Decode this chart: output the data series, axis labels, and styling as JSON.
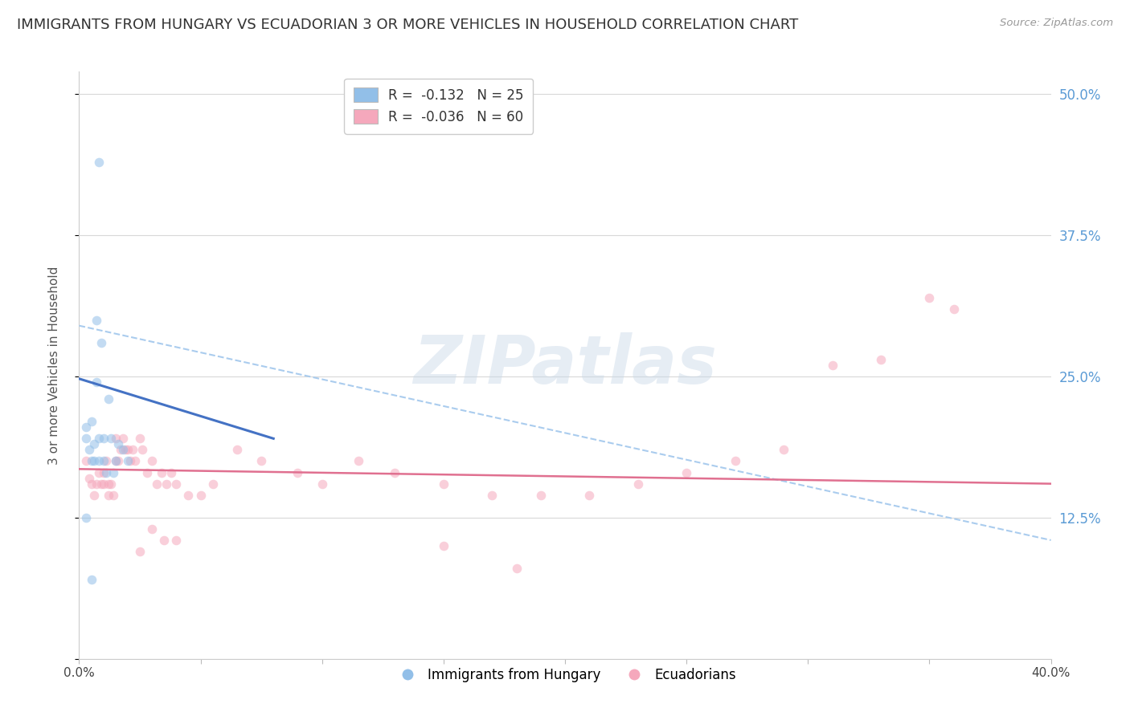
{
  "title": "IMMIGRANTS FROM HUNGARY VS ECUADORIAN 3 OR MORE VEHICLES IN HOUSEHOLD CORRELATION CHART",
  "source": "Source: ZipAtlas.com",
  "ylabel_left": "3 or more Vehicles in Household",
  "xlim": [
    0.0,
    0.4
  ],
  "ylim": [
    0.0,
    0.52
  ],
  "yticks_right": [
    0.0,
    0.125,
    0.25,
    0.375,
    0.5
  ],
  "ytick_right_labels": [
    "",
    "12.5%",
    "25.0%",
    "37.5%",
    "50.0%"
  ],
  "xticks": [
    0.0,
    0.05,
    0.1,
    0.15,
    0.2,
    0.25,
    0.3,
    0.35,
    0.4
  ],
  "xtick_labels": [
    "0.0%",
    "",
    "",
    "",
    "",
    "",
    "",
    "",
    "40.0%"
  ],
  "watermark": "ZIPatlas",
  "legend_r_blue": "R =  -0.132   N = 25",
  "legend_r_pink": "R =  -0.036   N = 60",
  "legend_label_blue": "Immigrants from Hungary",
  "legend_label_pink": "Ecuadorians",
  "blue_scatter_x": [
    0.003,
    0.003,
    0.004,
    0.005,
    0.005,
    0.006,
    0.006,
    0.007,
    0.007,
    0.008,
    0.008,
    0.009,
    0.01,
    0.01,
    0.011,
    0.012,
    0.013,
    0.014,
    0.015,
    0.016,
    0.018,
    0.02,
    0.003,
    0.005,
    0.008
  ],
  "blue_scatter_y": [
    0.205,
    0.195,
    0.185,
    0.175,
    0.21,
    0.19,
    0.175,
    0.3,
    0.245,
    0.195,
    0.175,
    0.28,
    0.175,
    0.195,
    0.165,
    0.23,
    0.195,
    0.165,
    0.175,
    0.19,
    0.185,
    0.175,
    0.125,
    0.07,
    0.44
  ],
  "pink_scatter_x": [
    0.003,
    0.004,
    0.005,
    0.006,
    0.007,
    0.008,
    0.009,
    0.01,
    0.01,
    0.011,
    0.012,
    0.012,
    0.013,
    0.014,
    0.015,
    0.015,
    0.016,
    0.017,
    0.018,
    0.019,
    0.02,
    0.021,
    0.022,
    0.023,
    0.025,
    0.026,
    0.028,
    0.03,
    0.032,
    0.034,
    0.036,
    0.038,
    0.04,
    0.045,
    0.05,
    0.055,
    0.065,
    0.075,
    0.09,
    0.1,
    0.115,
    0.13,
    0.15,
    0.17,
    0.19,
    0.21,
    0.23,
    0.25,
    0.27,
    0.29,
    0.31,
    0.33,
    0.35,
    0.36,
    0.025,
    0.03,
    0.035,
    0.04,
    0.15,
    0.18
  ],
  "pink_scatter_y": [
    0.175,
    0.16,
    0.155,
    0.145,
    0.155,
    0.165,
    0.155,
    0.165,
    0.155,
    0.175,
    0.155,
    0.145,
    0.155,
    0.145,
    0.195,
    0.175,
    0.175,
    0.185,
    0.195,
    0.185,
    0.185,
    0.175,
    0.185,
    0.175,
    0.195,
    0.185,
    0.165,
    0.175,
    0.155,
    0.165,
    0.155,
    0.165,
    0.155,
    0.145,
    0.145,
    0.155,
    0.185,
    0.175,
    0.165,
    0.155,
    0.175,
    0.165,
    0.155,
    0.145,
    0.145,
    0.145,
    0.155,
    0.165,
    0.175,
    0.185,
    0.26,
    0.265,
    0.32,
    0.31,
    0.095,
    0.115,
    0.105,
    0.105,
    0.1,
    0.08
  ],
  "blue_line_x": [
    0.0,
    0.08
  ],
  "blue_line_y": [
    0.248,
    0.195
  ],
  "pink_line_x": [
    0.0,
    0.4
  ],
  "pink_line_y": [
    0.168,
    0.155
  ],
  "dash_line_x": [
    0.0,
    0.4
  ],
  "dash_line_y": [
    0.295,
    0.105
  ],
  "scatter_size": 70,
  "scatter_alpha": 0.55,
  "blue_color": "#92bfe8",
  "pink_color": "#f5a8bc",
  "blue_line_color": "#4472c4",
  "pink_line_color": "#e07090",
  "dash_line_color": "#aaccee",
  "grid_color": "#d8d8d8",
  "right_axis_color": "#5b9bd5",
  "title_fontsize": 13,
  "axis_label_fontsize": 11,
  "tick_fontsize": 11
}
